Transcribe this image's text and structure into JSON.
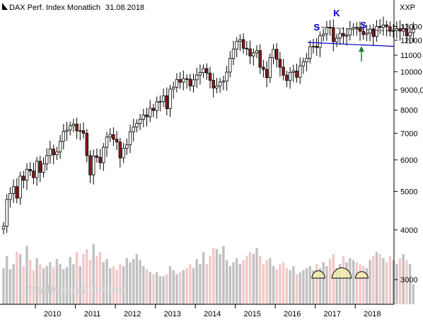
{
  "header": {
    "title": "DAX Perf. Index Monatlich",
    "date": "31.08.2018",
    "unit": "XXP"
  },
  "watermark": "tradesignal online",
  "pattern_labels": {
    "left_shoulder": "S",
    "head": "K",
    "right_shoulder": "S"
  },
  "colors": {
    "up_candle": "#ffffff",
    "down_candle": "#8b1a1a",
    "volume_up": "#c0c0c0",
    "volume_down": "#f2c8c8",
    "neckline": "#0000c8",
    "arrow": "#1e7a32",
    "label": "#0000c8",
    "volume_highlight": "#f5eeaa"
  },
  "chart_data": {
    "type": "candlestick",
    "title": "DAX Perf. Index Monatlich",
    "y_axis_side": "right",
    "ylim": [
      2600,
      14300
    ],
    "yticks": [
      3000,
      4000,
      5000,
      6000,
      7000,
      8000,
      9000,
      10000,
      11000,
      12000,
      13000
    ],
    "ytick_labels": [
      "3000",
      "4000",
      "5000",
      "6000",
      "7000",
      "8000",
      "9000,0",
      "10000",
      "11000",
      "12000",
      "13000"
    ],
    "xticks": [
      "2010",
      "2011",
      "2012",
      "2013",
      "2014",
      "2015",
      "2016",
      "2017",
      "2018"
    ],
    "start": "2009-03",
    "end": "2018-08",
    "close": [
      4085,
      4770,
      4940,
      5140,
      4810,
      5460,
      5330,
      5680,
      5630,
      5415,
      5955,
      5585,
      5865,
      6150,
      6390,
      6180,
      6280,
      6680,
      7080,
      7130,
      7310,
      7385,
      7100,
      7105,
      7000,
      6150,
      5500,
      6140,
      6090,
      5900,
      6455,
      6850,
      6945,
      6760,
      6655,
      6070,
      6420,
      6545,
      7060,
      7260,
      7410,
      7595,
      7780,
      7700,
      8090,
      7985,
      8400,
      8410,
      8700,
      8070,
      9040,
      9140,
      9560,
      9410,
      9600,
      9580,
      9210,
      9540,
      9805,
      9945,
      10180,
      9920,
      9510,
      9100,
      9200,
      9420,
      9470,
      9975,
      10800,
      11400,
      11920,
      12040,
      11450,
      11410,
      10950,
      11150,
      11300,
      10260,
      10130,
      9660,
      10850,
      11380,
      10740,
      10260,
      9800,
      9500,
      9960,
      10040,
      9680,
      10340,
      10590,
      10810,
      11550,
      11590,
      11500,
      12310,
      12440,
      12930,
      12900,
      11890,
      12140,
      12480,
      12290,
      12350,
      12800,
      12920,
      12900,
      12640,
      12400,
      12500,
      12800,
      12260,
      13000,
      12920,
      13110,
      12970,
      12640,
      12700,
      12830,
      12650,
      12830,
      12300,
      12540,
      12780
    ],
    "volume_index": [
      36,
      48,
      35,
      40,
      52,
      50,
      38,
      58,
      44,
      34,
      46,
      40,
      36,
      38,
      42,
      37,
      45,
      40,
      35,
      37,
      47,
      40,
      52,
      38,
      50,
      55,
      44,
      60,
      48,
      52,
      42,
      45,
      36,
      38,
      34,
      40,
      38,
      46,
      42,
      45,
      50,
      44,
      38,
      35,
      32,
      30,
      32,
      28,
      28,
      30,
      38,
      34,
      30,
      32,
      34,
      36,
      40,
      36,
      45,
      40,
      52,
      40,
      48,
      56,
      55,
      50,
      58,
      44,
      38,
      42,
      46,
      40,
      44,
      48,
      52,
      50,
      56,
      48,
      40,
      44,
      46,
      38,
      35,
      40,
      42,
      36,
      34,
      38,
      30,
      32,
      34,
      36,
      38,
      34,
      40,
      36,
      42,
      38,
      45,
      50,
      36,
      40,
      48,
      42,
      46,
      44,
      42,
      40,
      38,
      36,
      44,
      48,
      52,
      50,
      46,
      42,
      48,
      44,
      40,
      46,
      50,
      44,
      40,
      20
    ],
    "neckline": {
      "from": [
        "2016-12",
        11850
      ],
      "to": [
        "2018-08",
        11580
      ]
    },
    "resistance": {
      "from": [
        "2017-01",
        12950
      ],
      "to": [
        "2018-08",
        12650
      ]
    },
    "annotations": [
      {
        "text": "S",
        "at": "2017-01"
      },
      {
        "text": "K",
        "at": "2017-07"
      },
      {
        "text": "S",
        "at": "2018-03"
      }
    ],
    "arrow": {
      "at": "2018-02",
      "from": 10600,
      "to": 11600
    }
  }
}
